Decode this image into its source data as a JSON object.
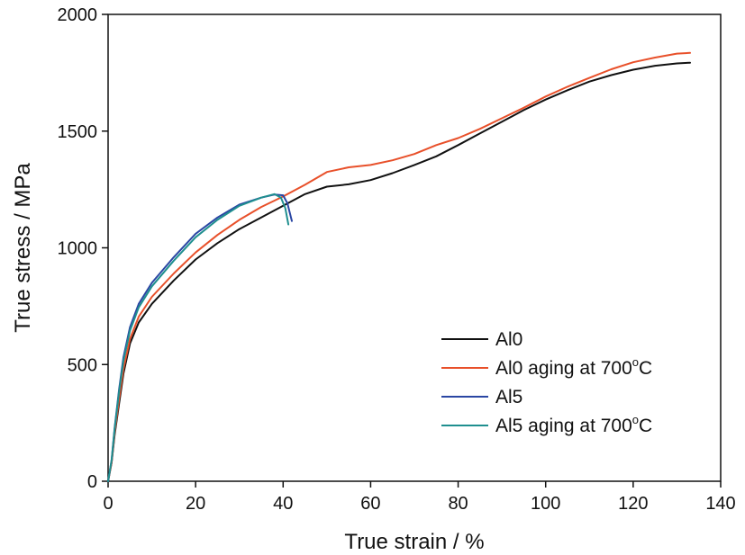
{
  "chart_data": {
    "type": "line",
    "title": "",
    "xlabel": "True strain / %",
    "ylabel": "True stress / MPa",
    "xlim": [
      0,
      140
    ],
    "ylim": [
      0,
      2000
    ],
    "xticks": [
      0,
      20,
      40,
      60,
      80,
      100,
      120,
      140
    ],
    "yticks": [
      0,
      500,
      1000,
      1500,
      2000
    ],
    "xtick_labels": [
      "0",
      "20",
      "40",
      "60",
      "80",
      "100",
      "120",
      "140"
    ],
    "ytick_labels": [
      "0",
      "500",
      "1000",
      "1500",
      "2000"
    ],
    "legend_position": "bottom-right",
    "series": [
      {
        "name": "Al0",
        "legend_text": "Al0",
        "legend_sup": "",
        "legend_suffix": "",
        "color": "#111111",
        "points": [
          [
            0,
            0
          ],
          [
            0.8,
            80
          ],
          [
            1.5,
            200
          ],
          [
            2.5,
            330
          ],
          [
            3.5,
            460
          ],
          [
            5,
            590
          ],
          [
            7,
            680
          ],
          [
            10,
            760
          ],
          [
            15,
            860
          ],
          [
            20,
            950
          ],
          [
            25,
            1020
          ],
          [
            30,
            1080
          ],
          [
            35,
            1130
          ],
          [
            40,
            1180
          ],
          [
            45,
            1230
          ],
          [
            50,
            1262
          ],
          [
            55,
            1272
          ],
          [
            60,
            1290
          ],
          [
            65,
            1320
          ],
          [
            70,
            1355
          ],
          [
            75,
            1392
          ],
          [
            80,
            1440
          ],
          [
            85,
            1490
          ],
          [
            90,
            1540
          ],
          [
            95,
            1590
          ],
          [
            100,
            1635
          ],
          [
            105,
            1675
          ],
          [
            110,
            1712
          ],
          [
            115,
            1740
          ],
          [
            120,
            1763
          ],
          [
            125,
            1780
          ],
          [
            130,
            1790
          ],
          [
            133,
            1793
          ]
        ]
      },
      {
        "name": "Al0 aging at 700oC",
        "legend_text": "Al0 aging at 700",
        "legend_sup": "o",
        "legend_suffix": "C",
        "color": "#e8502a",
        "points": [
          [
            0,
            0
          ],
          [
            0.8,
            80
          ],
          [
            1.5,
            210
          ],
          [
            2.5,
            350
          ],
          [
            3.5,
            480
          ],
          [
            5,
            610
          ],
          [
            7,
            705
          ],
          [
            10,
            790
          ],
          [
            15,
            890
          ],
          [
            20,
            980
          ],
          [
            25,
            1055
          ],
          [
            30,
            1120
          ],
          [
            35,
            1175
          ],
          [
            40,
            1220
          ],
          [
            45,
            1270
          ],
          [
            50,
            1325
          ],
          [
            55,
            1345
          ],
          [
            60,
            1355
          ],
          [
            65,
            1375
          ],
          [
            70,
            1402
          ],
          [
            75,
            1440
          ],
          [
            80,
            1470
          ],
          [
            85,
            1510
          ],
          [
            90,
            1555
          ],
          [
            95,
            1600
          ],
          [
            100,
            1648
          ],
          [
            105,
            1690
          ],
          [
            110,
            1728
          ],
          [
            115,
            1765
          ],
          [
            120,
            1795
          ],
          [
            125,
            1815
          ],
          [
            130,
            1832
          ],
          [
            133,
            1835
          ]
        ]
      },
      {
        "name": "Al5",
        "legend_text": "Al5",
        "legend_sup": "",
        "legend_suffix": "",
        "color": "#2a46a3",
        "points": [
          [
            0,
            0
          ],
          [
            0.8,
            90
          ],
          [
            1.5,
            230
          ],
          [
            2.5,
            390
          ],
          [
            3.5,
            530
          ],
          [
            5,
            660
          ],
          [
            7,
            760
          ],
          [
            10,
            850
          ],
          [
            15,
            960
          ],
          [
            20,
            1060
          ],
          [
            25,
            1130
          ],
          [
            30,
            1185
          ],
          [
            35,
            1215
          ],
          [
            38,
            1228
          ],
          [
            40,
            1225
          ],
          [
            41,
            1190
          ],
          [
            42,
            1115
          ]
        ]
      },
      {
        "name": "Al5 aging at 700oC",
        "legend_text": "Al5 aging at 700",
        "legend_sup": "o",
        "legend_suffix": "C",
        "color": "#1f8f8f",
        "points": [
          [
            0,
            0
          ],
          [
            0.8,
            90
          ],
          [
            1.5,
            225
          ],
          [
            2.5,
            380
          ],
          [
            3.5,
            515
          ],
          [
            5,
            645
          ],
          [
            7,
            745
          ],
          [
            10,
            835
          ],
          [
            15,
            945
          ],
          [
            20,
            1045
          ],
          [
            25,
            1120
          ],
          [
            30,
            1180
          ],
          [
            35,
            1215
          ],
          [
            38,
            1230
          ],
          [
            39.5,
            1215
          ],
          [
            40.5,
            1170
          ],
          [
            41.2,
            1100
          ]
        ]
      }
    ]
  }
}
